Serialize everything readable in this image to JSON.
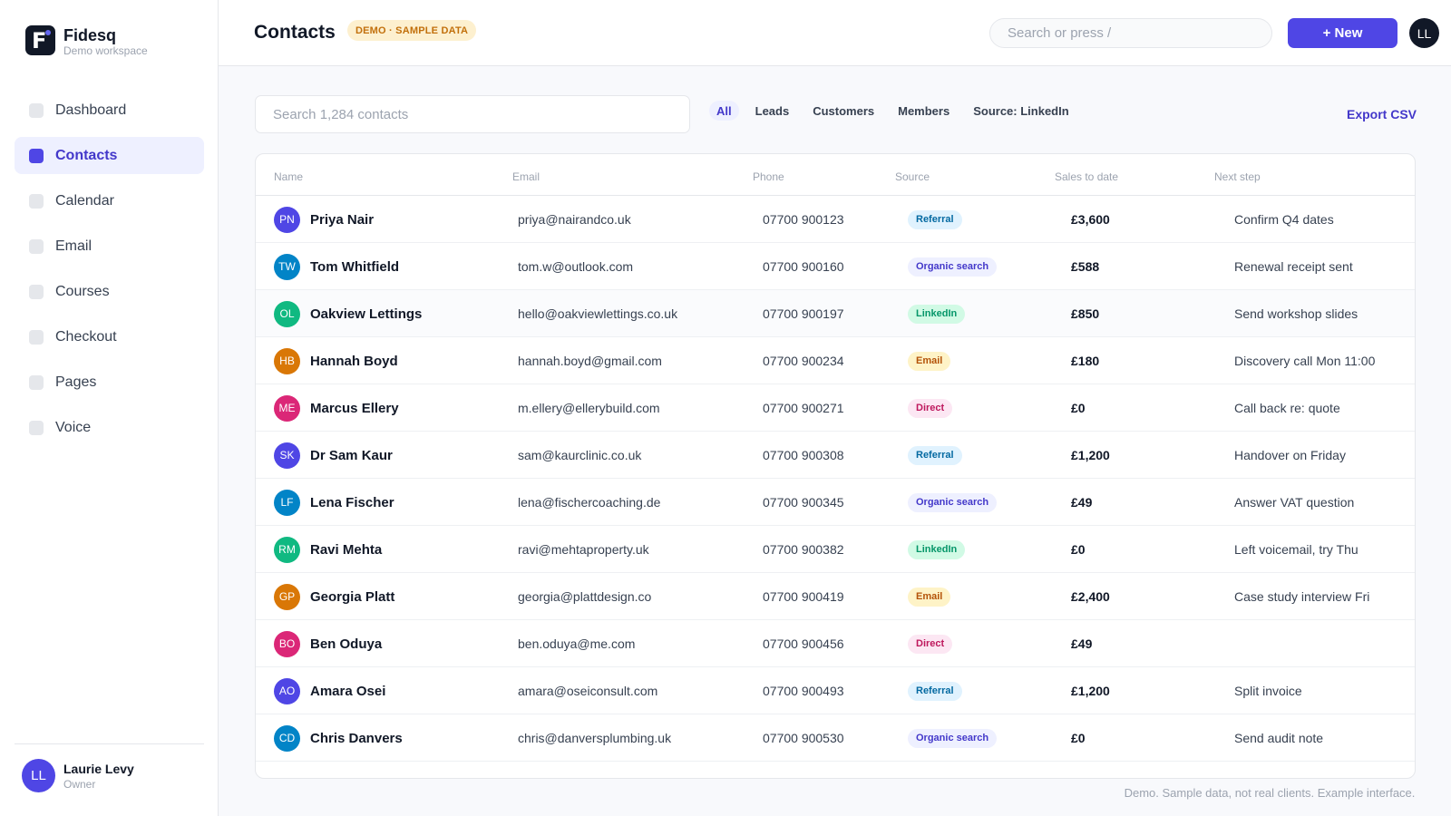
{
  "brand": {
    "name": "Fidesq",
    "workspace": "Demo workspace",
    "logo_letter": "F"
  },
  "nav": [
    {
      "label": "Dashboard",
      "active": false
    },
    {
      "label": "Contacts",
      "active": true
    },
    {
      "label": "Calendar",
      "active": false
    },
    {
      "label": "Email",
      "active": false
    },
    {
      "label": "Courses",
      "active": false
    },
    {
      "label": "Checkout",
      "active": false
    },
    {
      "label": "Pages",
      "active": false
    },
    {
      "label": "Voice",
      "active": false
    }
  ],
  "user": {
    "initials": "LL",
    "name": "Laurie Levy",
    "role": "Owner"
  },
  "header": {
    "title": "Contacts",
    "badge": "DEMO · SAMPLE DATA",
    "search_placeholder": "Search or press /",
    "new_label": "+ New",
    "avatar_initials": "LL"
  },
  "toolbar": {
    "search_placeholder": "Search 1,284 contacts",
    "filters": [
      "All",
      "Leads",
      "Customers",
      "Members",
      "Source: LinkedIn"
    ],
    "active_filter": "All",
    "export_label": "Export CSV"
  },
  "table": {
    "columns": [
      "Name",
      "Email",
      "Phone",
      "Source",
      "Sales to date",
      "Next step"
    ],
    "rows": [
      {
        "initials": "PN",
        "name": "Priya Nair",
        "email": "priya@nairandco.uk",
        "phone": "07700 900123",
        "source": "Referral",
        "sales": "£3,600",
        "next": "Confirm Q4 dates",
        "color": "#4f46e5"
      },
      {
        "initials": "TW",
        "name": "Tom Whitfield",
        "email": "tom.w@outlook.com",
        "phone": "07700 900160",
        "source": "Organic search",
        "sales": "£588",
        "next": "Renewal receipt sent",
        "color": "#0284c7"
      },
      {
        "initials": "OL",
        "name": "Oakview Lettings",
        "email": "hello@oakviewlettings.co.uk",
        "phone": "07700 900197",
        "source": "LinkedIn",
        "sales": "£850",
        "next": "Send workshop slides",
        "color": "#10b981"
      },
      {
        "initials": "HB",
        "name": "Hannah Boyd",
        "email": "hannah.boyd@gmail.com",
        "phone": "07700 900234",
        "source": "Email",
        "sales": "£180",
        "next": "Discovery call Mon 11:00",
        "color": "#d97706"
      },
      {
        "initials": "ME",
        "name": "Marcus Ellery",
        "email": "m.ellery@ellerybuild.com",
        "phone": "07700 900271",
        "source": "Direct",
        "sales": "£0",
        "next": "Call back re: quote",
        "color": "#db2777"
      },
      {
        "initials": "SK",
        "name": "Dr Sam Kaur",
        "email": "sam@kaurclinic.co.uk",
        "phone": "07700 900308",
        "source": "Referral",
        "sales": "£1,200",
        "next": "Handover on Friday",
        "color": "#4f46e5"
      },
      {
        "initials": "LF",
        "name": "Lena Fischer",
        "email": "lena@fischercoaching.de",
        "phone": "07700 900345",
        "source": "Organic search",
        "sales": "£49",
        "next": "Answer VAT question",
        "color": "#0284c7"
      },
      {
        "initials": "RM",
        "name": "Ravi Mehta",
        "email": "ravi@mehtaproperty.uk",
        "phone": "07700 900382",
        "source": "LinkedIn",
        "sales": "£0",
        "next": "Left voicemail, try Thu",
        "color": "#10b981"
      },
      {
        "initials": "GP",
        "name": "Georgia Platt",
        "email": "georgia@plattdesign.co",
        "phone": "07700 900419",
        "source": "Email",
        "sales": "£2,400",
        "next": "Case study interview Fri",
        "color": "#d97706"
      },
      {
        "initials": "BO",
        "name": "Ben Oduya",
        "email": "ben.oduya@me.com",
        "phone": "07700 900456",
        "source": "Direct",
        "sales": "£49",
        "next": "",
        "color": "#db2777"
      },
      {
        "initials": "AO",
        "name": "Amara Osei",
        "email": "amara@oseiconsult.com",
        "phone": "07700 900493",
        "source": "Referral",
        "sales": "£1,200",
        "next": "Split invoice",
        "color": "#4f46e5"
      },
      {
        "initials": "CD",
        "name": "Chris Danvers",
        "email": "chris@danversplumbing.uk",
        "phone": "07700 900530",
        "source": "Organic search",
        "sales": "£0",
        "next": "Send audit note",
        "color": "#0284c7"
      }
    ]
  },
  "source_styles": {
    "Referral": {
      "bg": "#e0f2fe",
      "fg": "#0369a1"
    },
    "Organic search": {
      "bg": "#eef0ff",
      "fg": "#4338ca"
    },
    "LinkedIn": {
      "bg": "#d1fae5",
      "fg": "#059669"
    },
    "Email": {
      "bg": "#fef3c7",
      "fg": "#b45309"
    },
    "Direct": {
      "bg": "#fce7f3",
      "fg": "#be185d"
    }
  },
  "footnote": "Demo. Sample data, not real clients. Example interface."
}
